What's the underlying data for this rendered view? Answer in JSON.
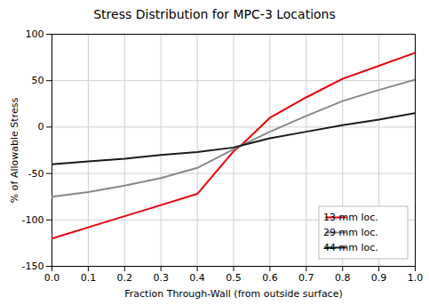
{
  "chart_data": {
    "type": "line",
    "title": "Stress Distribution for MPC-3 Locations",
    "xlabel": "Fraction Through-Wall (from outside surface)",
    "ylabel": "% of Allowable Stress",
    "x": [
      0.0,
      0.1,
      0.2,
      0.3,
      0.4,
      0.5,
      0.52,
      0.6,
      0.7,
      0.8,
      0.9,
      1.0
    ],
    "series": [
      {
        "name": "13 mm loc.",
        "color": "#e8000a",
        "values": [
          -120,
          -108,
          -96,
          -84,
          -72,
          -26,
          -20,
          10,
          32,
          52,
          66,
          80
        ]
      },
      {
        "name": "29 mm loc.",
        "color": "#888888",
        "values": [
          -75,
          -70,
          -63,
          -55,
          -44,
          -24,
          -20,
          -5,
          12,
          28,
          40,
          51
        ]
      },
      {
        "name": "44 mm loc.",
        "color": "#1a1a1a",
        "values": [
          -40,
          -37,
          -34,
          -30,
          -27,
          -22,
          -20,
          -12,
          -5,
          2,
          8,
          15
        ]
      }
    ],
    "xlim": [
      0,
      1
    ],
    "ylim": [
      -150,
      100
    ],
    "xticks": [
      {
        "value": 0,
        "label": "0.0"
      },
      0.1,
      0.2,
      0.3,
      0.4,
      0.5,
      0.6,
      0.7,
      0.8,
      0.9,
      {
        "value": 1.0,
        "label": "1.0"
      }
    ],
    "yticks": [
      -150,
      -100,
      -50,
      0,
      50,
      100
    ],
    "grid": true,
    "legend": "lower right"
  }
}
